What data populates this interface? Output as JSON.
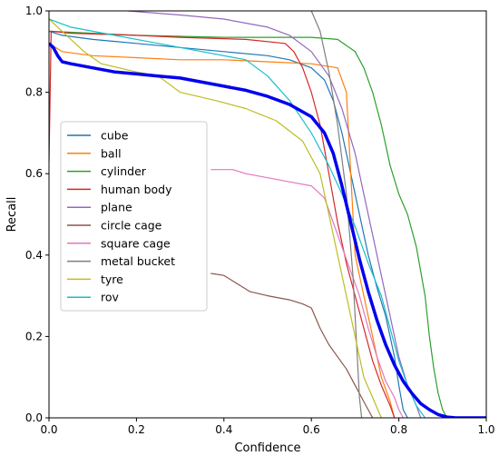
{
  "chart_data": {
    "type": "line",
    "title": "",
    "xlabel": "Confidence",
    "ylabel": "Recall",
    "xlim": [
      0,
      1
    ],
    "ylim": [
      0,
      1
    ],
    "x_ticks": [
      "0.0",
      "0.2",
      "0.4",
      "0.6",
      "0.8",
      "1.0"
    ],
    "y_ticks": [
      "0.0",
      "0.2",
      "0.4",
      "0.6",
      "0.8",
      "1.0"
    ],
    "grid": false,
    "legend_position": "center-left",
    "series": [
      {
        "name": "cube",
        "color": "#1f77b4",
        "points": [
          [
            0,
            0.95
          ],
          [
            0.03,
            0.94
          ],
          [
            0.1,
            0.93
          ],
          [
            0.2,
            0.92
          ],
          [
            0.3,
            0.91
          ],
          [
            0.4,
            0.9
          ],
          [
            0.5,
            0.89
          ],
          [
            0.55,
            0.88
          ],
          [
            0.6,
            0.86
          ],
          [
            0.63,
            0.83
          ],
          [
            0.65,
            0.78
          ],
          [
            0.67,
            0.7
          ],
          [
            0.69,
            0.6
          ],
          [
            0.71,
            0.5
          ],
          [
            0.73,
            0.4
          ],
          [
            0.75,
            0.32
          ],
          [
            0.77,
            0.25
          ],
          [
            0.79,
            0.15
          ],
          [
            0.8,
            0.08
          ],
          [
            0.81,
            0.02
          ],
          [
            0.82,
            0
          ]
        ]
      },
      {
        "name": "ball",
        "color": "#ff7f0e",
        "points": [
          [
            0,
            0.92
          ],
          [
            0.03,
            0.9
          ],
          [
            0.1,
            0.89
          ],
          [
            0.2,
            0.885
          ],
          [
            0.3,
            0.88
          ],
          [
            0.4,
            0.88
          ],
          [
            0.5,
            0.875
          ],
          [
            0.6,
            0.87
          ],
          [
            0.66,
            0.86
          ],
          [
            0.68,
            0.8
          ],
          [
            0.69,
            0.6
          ],
          [
            0.7,
            0.4
          ],
          [
            0.72,
            0.3
          ],
          [
            0.74,
            0.2
          ],
          [
            0.76,
            0.1
          ],
          [
            0.78,
            0.04
          ],
          [
            0.79,
            0
          ]
        ]
      },
      {
        "name": "cylinder",
        "color": "#2ca02c",
        "points": [
          [
            0,
            0.95
          ],
          [
            0.2,
            0.94
          ],
          [
            0.4,
            0.935
          ],
          [
            0.6,
            0.935
          ],
          [
            0.66,
            0.93
          ],
          [
            0.7,
            0.9
          ],
          [
            0.72,
            0.86
          ],
          [
            0.74,
            0.8
          ],
          [
            0.76,
            0.72
          ],
          [
            0.78,
            0.62
          ],
          [
            0.8,
            0.55
          ],
          [
            0.82,
            0.5
          ],
          [
            0.84,
            0.42
          ],
          [
            0.86,
            0.3
          ],
          [
            0.87,
            0.2
          ],
          [
            0.88,
            0.12
          ],
          [
            0.89,
            0.06
          ],
          [
            0.9,
            0.02
          ],
          [
            0.91,
            0
          ]
        ]
      },
      {
        "name": "human body",
        "color": "#d62728",
        "points": [
          [
            0,
            0.63
          ],
          [
            0.005,
            0.95
          ],
          [
            0.05,
            0.945
          ],
          [
            0.2,
            0.94
          ],
          [
            0.3,
            0.935
          ],
          [
            0.45,
            0.93
          ],
          [
            0.54,
            0.92
          ],
          [
            0.56,
            0.9
          ],
          [
            0.58,
            0.86
          ],
          [
            0.6,
            0.8
          ],
          [
            0.62,
            0.72
          ],
          [
            0.64,
            0.6
          ],
          [
            0.66,
            0.48
          ],
          [
            0.68,
            0.38
          ],
          [
            0.7,
            0.3
          ],
          [
            0.72,
            0.22
          ],
          [
            0.74,
            0.14
          ],
          [
            0.76,
            0.08
          ],
          [
            0.78,
            0.03
          ],
          [
            0.79,
            0
          ]
        ]
      },
      {
        "name": "plane",
        "color": "#9467bd",
        "points": [
          [
            0.18,
            1.0
          ],
          [
            0.3,
            0.99
          ],
          [
            0.4,
            0.98
          ],
          [
            0.5,
            0.96
          ],
          [
            0.55,
            0.94
          ],
          [
            0.6,
            0.9
          ],
          [
            0.64,
            0.84
          ],
          [
            0.67,
            0.76
          ],
          [
            0.7,
            0.65
          ],
          [
            0.72,
            0.55
          ],
          [
            0.74,
            0.45
          ],
          [
            0.76,
            0.35
          ],
          [
            0.78,
            0.25
          ],
          [
            0.8,
            0.15
          ],
          [
            0.82,
            0.08
          ],
          [
            0.84,
            0.03
          ],
          [
            0.85,
            0
          ]
        ]
      },
      {
        "name": "circle cage",
        "color": "#8c564b",
        "points": [
          [
            0.37,
            0.355
          ],
          [
            0.4,
            0.35
          ],
          [
            0.43,
            0.33
          ],
          [
            0.46,
            0.31
          ],
          [
            0.5,
            0.3
          ],
          [
            0.55,
            0.29
          ],
          [
            0.58,
            0.28
          ],
          [
            0.6,
            0.27
          ],
          [
            0.62,
            0.22
          ],
          [
            0.64,
            0.18
          ],
          [
            0.66,
            0.15
          ],
          [
            0.68,
            0.12
          ],
          [
            0.7,
            0.08
          ],
          [
            0.72,
            0.04
          ],
          [
            0.74,
            0
          ]
        ]
      },
      {
        "name": "square cage",
        "color": "#e377c2",
        "points": [
          [
            0.37,
            0.61
          ],
          [
            0.42,
            0.61
          ],
          [
            0.45,
            0.6
          ],
          [
            0.5,
            0.59
          ],
          [
            0.55,
            0.58
          ],
          [
            0.6,
            0.57
          ],
          [
            0.63,
            0.54
          ],
          [
            0.65,
            0.48
          ],
          [
            0.67,
            0.42
          ],
          [
            0.69,
            0.36
          ],
          [
            0.71,
            0.3
          ],
          [
            0.73,
            0.22
          ],
          [
            0.75,
            0.15
          ],
          [
            0.77,
            0.09
          ],
          [
            0.79,
            0.05
          ],
          [
            0.8,
            0.02
          ],
          [
            0.81,
            0
          ]
        ]
      },
      {
        "name": "metal bucket",
        "color": "#7f7f7f",
        "points": [
          [
            0.6,
            1.0
          ],
          [
            0.62,
            0.95
          ],
          [
            0.64,
            0.85
          ],
          [
            0.66,
            0.72
          ],
          [
            0.68,
            0.55
          ],
          [
            0.695,
            0.35
          ],
          [
            0.705,
            0.15
          ],
          [
            0.71,
            0.05
          ],
          [
            0.715,
            0
          ]
        ]
      },
      {
        "name": "tyre",
        "color": "#bcbd22",
        "points": [
          [
            0,
            0.98
          ],
          [
            0.03,
            0.95
          ],
          [
            0.08,
            0.9
          ],
          [
            0.12,
            0.87
          ],
          [
            0.2,
            0.85
          ],
          [
            0.25,
            0.84
          ],
          [
            0.3,
            0.8
          ],
          [
            0.38,
            0.78
          ],
          [
            0.45,
            0.76
          ],
          [
            0.52,
            0.73
          ],
          [
            0.58,
            0.68
          ],
          [
            0.62,
            0.6
          ],
          [
            0.64,
            0.5
          ],
          [
            0.66,
            0.4
          ],
          [
            0.68,
            0.3
          ],
          [
            0.7,
            0.2
          ],
          [
            0.72,
            0.1
          ],
          [
            0.74,
            0.05
          ],
          [
            0.76,
            0
          ]
        ]
      },
      {
        "name": "rov",
        "color": "#17becf",
        "points": [
          [
            0,
            0.98
          ],
          [
            0.05,
            0.96
          ],
          [
            0.15,
            0.94
          ],
          [
            0.25,
            0.92
          ],
          [
            0.35,
            0.9
          ],
          [
            0.45,
            0.88
          ],
          [
            0.5,
            0.84
          ],
          [
            0.55,
            0.78
          ],
          [
            0.6,
            0.7
          ],
          [
            0.64,
            0.62
          ],
          [
            0.67,
            0.55
          ],
          [
            0.7,
            0.47
          ],
          [
            0.73,
            0.38
          ],
          [
            0.76,
            0.3
          ],
          [
            0.78,
            0.22
          ],
          [
            0.8,
            0.14
          ],
          [
            0.82,
            0.08
          ],
          [
            0.84,
            0.03
          ],
          [
            0.86,
            0
          ]
        ]
      },
      {
        "name": "",
        "color": "#0000ee",
        "width": 3.5,
        "points": [
          [
            0,
            0.92
          ],
          [
            0.01,
            0.91
          ],
          [
            0.02,
            0.89
          ],
          [
            0.03,
            0.875
          ],
          [
            0.05,
            0.87
          ],
          [
            0.1,
            0.86
          ],
          [
            0.15,
            0.85
          ],
          [
            0.2,
            0.845
          ],
          [
            0.25,
            0.84
          ],
          [
            0.3,
            0.835
          ],
          [
            0.35,
            0.825
          ],
          [
            0.4,
            0.815
          ],
          [
            0.45,
            0.805
          ],
          [
            0.5,
            0.79
          ],
          [
            0.55,
            0.77
          ],
          [
            0.6,
            0.74
          ],
          [
            0.63,
            0.7
          ],
          [
            0.65,
            0.65
          ],
          [
            0.67,
            0.57
          ],
          [
            0.69,
            0.48
          ],
          [
            0.71,
            0.39
          ],
          [
            0.73,
            0.31
          ],
          [
            0.75,
            0.24
          ],
          [
            0.77,
            0.18
          ],
          [
            0.79,
            0.13
          ],
          [
            0.81,
            0.09
          ],
          [
            0.83,
            0.06
          ],
          [
            0.85,
            0.035
          ],
          [
            0.87,
            0.02
          ],
          [
            0.89,
            0.008
          ],
          [
            0.91,
            0.002
          ],
          [
            0.93,
            0
          ],
          [
            1.0,
            0
          ]
        ]
      }
    ]
  }
}
